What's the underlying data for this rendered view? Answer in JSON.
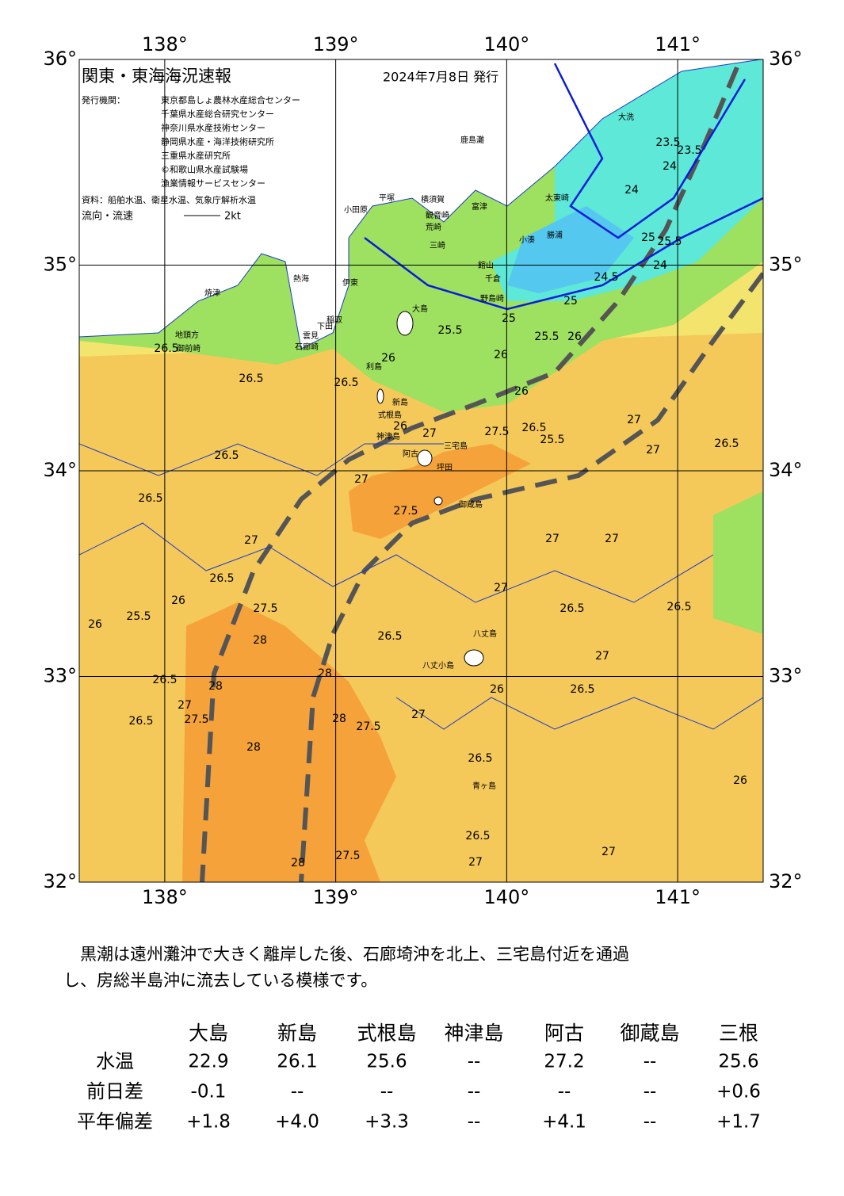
{
  "map": {
    "title": "関東・東海海況速報",
    "date": "2024年7月8日 発行",
    "issuer_label": "発行機関：",
    "issuers": [
      "東京都島しょ農林水産総合センター",
      "千葉県水産総合研究センター",
      "神奈川県水産技術センター",
      "静岡県水産・海洋技術研究所",
      "三重県水産研究所",
      "©和歌山県水産試験場",
      "漁業情報サービスセンター"
    ],
    "source": "資料：船舶水温、衛星水温、気象庁解析水温",
    "legend": {
      "label": "流向・流速",
      "speed": "2kt"
    },
    "xlim": [
      137.5,
      141.5
    ],
    "ylim": [
      32,
      36
    ],
    "lon_ticks": [
      {
        "value": 138,
        "label": "138°"
      },
      {
        "value": 139,
        "label": "139°"
      },
      {
        "value": 140,
        "label": "140°"
      },
      {
        "value": 141,
        "label": "141°"
      }
    ],
    "lat_ticks": [
      {
        "value": 32,
        "label": "32°"
      },
      {
        "value": 33,
        "label": "33°"
      },
      {
        "value": 34,
        "label": "34°"
      },
      {
        "value": 35,
        "label": "35°"
      },
      {
        "value": 36,
        "label": "36°"
      }
    ],
    "places": [
      "大洗",
      "鹿島灘",
      "太東崎",
      "勝浦",
      "小湊",
      "館山",
      "千倉",
      "野島崎",
      "富津",
      "平塚",
      "横須賀",
      "観音崎",
      "荒崎",
      "三崎",
      "小田原",
      "熱海",
      "伊東",
      "稲取",
      "下田",
      "雲見",
      "石廊崎",
      "焼津",
      "地頭方",
      "御前崎",
      "大島",
      "利島",
      "新島",
      "式根島",
      "神津島",
      "三宅島",
      "阿古",
      "坪田",
      "御蔵島",
      "八丈島",
      "八丈小島",
      "青ヶ島"
    ],
    "contours": [
      "23.5",
      "23.5",
      "24",
      "24",
      "25",
      "25.5",
      "25",
      "24.5",
      "24",
      "25",
      "25.5",
      "26",
      "26.5",
      "26",
      "25.5",
      "26",
      "26",
      "26.5",
      "26.5",
      "26.5",
      "26",
      "25.5",
      "26.5",
      "27",
      "27.5",
      "26.5",
      "27",
      "27",
      "27.5",
      "27",
      "26.5",
      "27",
      "26.5",
      "27",
      "27",
      "26.5",
      "25.5",
      "26",
      "26",
      "27.5",
      "28",
      "28",
      "27.5",
      "28",
      "28",
      "27.5",
      "26.5",
      "27",
      "27",
      "26.5",
      "26",
      "27",
      "26.5",
      "26.5",
      "27",
      "26.5",
      "28",
      "27.5",
      "28",
      "26.5",
      "27",
      "26.5",
      "27",
      "26"
    ]
  },
  "comment": "　黒潮は遠州灘沖で大きく離岸した後、石廊埼沖を北上、三宅島付近を通過し、房総半島沖に流去している模様です。",
  "table": {
    "columns": [
      "大島",
      "新島",
      "式根島",
      "神津島",
      "阿古",
      "御蔵島",
      "三根"
    ],
    "rows": [
      {
        "label": "水温",
        "values": [
          "22.9",
          "26.1",
          "25.6",
          "--",
          "27.2",
          "--",
          "25.6"
        ]
      },
      {
        "label": "前日差",
        "values": [
          "-0.1",
          "--",
          "--",
          "--",
          "--",
          "--",
          "+0.6"
        ]
      },
      {
        "label": "平年偏差",
        "values": [
          "+1.8",
          "+4.0",
          "+3.3",
          "--",
          "+4.1",
          "--",
          "+1.7"
        ]
      }
    ]
  }
}
